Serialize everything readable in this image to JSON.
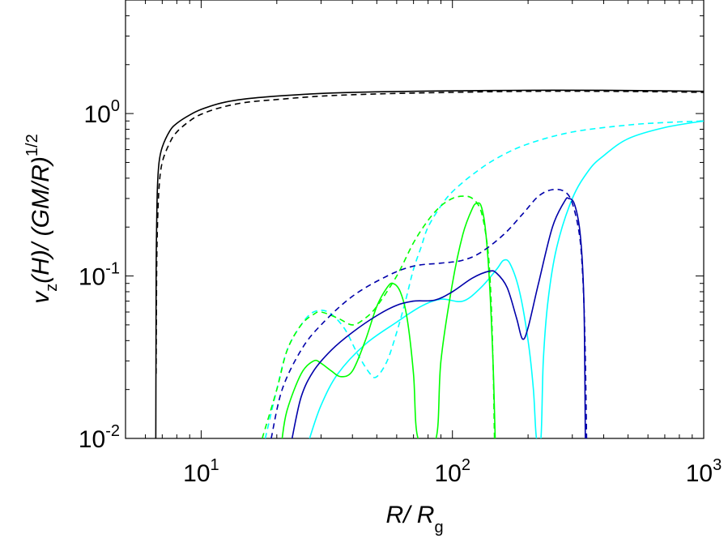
{
  "chart_data": {
    "type": "line",
    "xlabel": {
      "main": "R/ R",
      "sub": "g"
    },
    "ylabel": {
      "v": "v",
      "sub": "z",
      "rest": "(H)/ (GM/R)",
      "sup": "1/2"
    },
    "xscale": "log",
    "yscale": "log",
    "xlim": [
      5,
      1000
    ],
    "ylim": [
      0.01,
      5
    ],
    "grid": false,
    "legend": "none",
    "x_ticks": [
      {
        "value": 10,
        "base": "10",
        "exp": "1"
      },
      {
        "value": 100,
        "base": "10",
        "exp": "2"
      },
      {
        "value": 1000,
        "base": "10",
        "exp": "3"
      }
    ],
    "y_ticks": [
      {
        "value": 0.01,
        "base": "10",
        "exp": "-2"
      },
      {
        "value": 0.1,
        "base": "10",
        "exp": "-1"
      },
      {
        "value": 1,
        "base": "10",
        "exp": "0"
      }
    ],
    "series": [
      {
        "color": "#000000",
        "dash": "solid",
        "points": [
          [
            6.6,
            0.01
          ],
          [
            6.62,
            0.1
          ],
          [
            6.65,
            0.2
          ],
          [
            6.7,
            0.35
          ],
          [
            6.8,
            0.5
          ],
          [
            7.0,
            0.62
          ],
          [
            7.5,
            0.78
          ],
          [
            8,
            0.87
          ],
          [
            9,
            0.98
          ],
          [
            10,
            1.06
          ],
          [
            12,
            1.16
          ],
          [
            15,
            1.23
          ],
          [
            20,
            1.28
          ],
          [
            30,
            1.33
          ],
          [
            50,
            1.36
          ],
          [
            100,
            1.38
          ],
          [
            200,
            1.39
          ],
          [
            400,
            1.39
          ],
          [
            700,
            1.38
          ],
          [
            1000,
            1.37
          ]
        ]
      },
      {
        "color": "#000000",
        "dash": "dashed",
        "points": [
          [
            6.62,
            0.025
          ],
          [
            6.65,
            0.1
          ],
          [
            6.7,
            0.2
          ],
          [
            6.8,
            0.35
          ],
          [
            7.0,
            0.5
          ],
          [
            7.5,
            0.66
          ],
          [
            8,
            0.77
          ],
          [
            9,
            0.9
          ],
          [
            10,
            0.99
          ],
          [
            12,
            1.09
          ],
          [
            15,
            1.17
          ],
          [
            20,
            1.22
          ],
          [
            30,
            1.28
          ],
          [
            50,
            1.32
          ],
          [
            100,
            1.35
          ],
          [
            200,
            1.37
          ],
          [
            400,
            1.37
          ],
          [
            700,
            1.36
          ],
          [
            1000,
            1.35
          ]
        ]
      },
      {
        "color": "#00ffff",
        "dash": "dashed",
        "points": [
          [
            18,
            0.01
          ],
          [
            20,
            0.02
          ],
          [
            22,
            0.035
          ],
          [
            25,
            0.05
          ],
          [
            28,
            0.06
          ],
          [
            32,
            0.06
          ],
          [
            37,
            0.048
          ],
          [
            42,
            0.033
          ],
          [
            47,
            0.025
          ],
          [
            50,
            0.024
          ],
          [
            55,
            0.03
          ],
          [
            60,
            0.045
          ],
          [
            65,
            0.07
          ],
          [
            70,
            0.11
          ],
          [
            75,
            0.15
          ],
          [
            80,
            0.2
          ],
          [
            90,
            0.27
          ],
          [
            100,
            0.33
          ],
          [
            120,
            0.42
          ],
          [
            150,
            0.53
          ],
          [
            200,
            0.65
          ],
          [
            300,
            0.77
          ],
          [
            500,
            0.85
          ],
          [
            700,
            0.88
          ],
          [
            1000,
            0.9
          ]
        ]
      },
      {
        "color": "#00ffff",
        "dash": "solid",
        "points": [
          [
            27,
            0.01
          ],
          [
            30,
            0.016
          ],
          [
            35,
            0.025
          ],
          [
            45,
            0.038
          ],
          [
            60,
            0.052
          ],
          [
            75,
            0.065
          ],
          [
            90,
            0.072
          ],
          [
            110,
            0.07
          ],
          [
            130,
            0.085
          ],
          [
            150,
            0.11
          ],
          [
            160,
            0.125
          ],
          [
            170,
            0.118
          ],
          [
            185,
            0.08
          ],
          [
            200,
            0.04
          ],
          [
            210,
            0.02
          ],
          [
            216,
            0.01
          ],
          [
            225,
            0.01
          ],
          [
            230,
            0.03
          ],
          [
            240,
            0.07
          ],
          [
            260,
            0.15
          ],
          [
            300,
            0.3
          ],
          [
            350,
            0.45
          ],
          [
            400,
            0.55
          ],
          [
            500,
            0.7
          ],
          [
            700,
            0.82
          ],
          [
            1000,
            0.9
          ]
        ]
      },
      {
        "color": "#00ff00",
        "dash": "dashed",
        "points": [
          [
            17.5,
            0.01
          ],
          [
            20,
            0.02
          ],
          [
            22,
            0.035
          ],
          [
            25,
            0.05
          ],
          [
            28,
            0.058
          ],
          [
            30,
            0.06
          ],
          [
            35,
            0.055
          ],
          [
            40,
            0.05
          ],
          [
            45,
            0.055
          ],
          [
            50,
            0.065
          ],
          [
            60,
            0.1
          ],
          [
            70,
            0.16
          ],
          [
            80,
            0.22
          ],
          [
            90,
            0.27
          ],
          [
            100,
            0.3
          ],
          [
            110,
            0.31
          ],
          [
            120,
            0.3
          ],
          [
            130,
            0.25
          ],
          [
            138,
            0.15
          ],
          [
            142,
            0.08
          ],
          [
            145,
            0.03
          ],
          [
            147,
            0.01
          ]
        ]
      },
      {
        "color": "#00ff00",
        "dash": "solid",
        "points": [
          [
            21,
            0.01
          ],
          [
            22,
            0.015
          ],
          [
            25,
            0.025
          ],
          [
            28,
            0.03
          ],
          [
            30,
            0.029
          ],
          [
            33,
            0.026
          ],
          [
            36,
            0.024
          ],
          [
            40,
            0.026
          ],
          [
            45,
            0.04
          ],
          [
            50,
            0.065
          ],
          [
            55,
            0.085
          ],
          [
            58,
            0.09
          ],
          [
            62,
            0.08
          ],
          [
            66,
            0.055
          ],
          [
            70,
            0.025
          ],
          [
            73,
            0.01
          ],
          [
            86,
            0.01
          ],
          [
            90,
            0.03
          ],
          [
            100,
            0.09
          ],
          [
            110,
            0.18
          ],
          [
            120,
            0.26
          ],
          [
            125,
            0.28
          ],
          [
            130,
            0.27
          ],
          [
            135,
            0.2
          ],
          [
            140,
            0.1
          ],
          [
            145,
            0.03
          ],
          [
            148,
            0.01
          ]
        ]
      },
      {
        "color": "#0000aa",
        "dash": "dashed",
        "points": [
          [
            19,
            0.01
          ],
          [
            21,
            0.02
          ],
          [
            25,
            0.035
          ],
          [
            30,
            0.05
          ],
          [
            40,
            0.075
          ],
          [
            55,
            0.1
          ],
          [
            70,
            0.115
          ],
          [
            90,
            0.12
          ],
          [
            110,
            0.125
          ],
          [
            130,
            0.14
          ],
          [
            160,
            0.18
          ],
          [
            190,
            0.24
          ],
          [
            220,
            0.31
          ],
          [
            250,
            0.34
          ],
          [
            280,
            0.33
          ],
          [
            300,
            0.28
          ],
          [
            320,
            0.18
          ],
          [
            330,
            0.1
          ],
          [
            337,
            0.04
          ],
          [
            342,
            0.01
          ]
        ]
      },
      {
        "color": "#0000aa",
        "dash": "solid",
        "points": [
          [
            23,
            0.01
          ],
          [
            25,
            0.018
          ],
          [
            28,
            0.026
          ],
          [
            33,
            0.035
          ],
          [
            40,
            0.045
          ],
          [
            50,
            0.057
          ],
          [
            60,
            0.066
          ],
          [
            70,
            0.07
          ],
          [
            85,
            0.071
          ],
          [
            100,
            0.08
          ],
          [
            120,
            0.097
          ],
          [
            140,
            0.107
          ],
          [
            150,
            0.104
          ],
          [
            165,
            0.085
          ],
          [
            180,
            0.055
          ],
          [
            190,
            0.041
          ],
          [
            200,
            0.048
          ],
          [
            220,
            0.09
          ],
          [
            250,
            0.2
          ],
          [
            280,
            0.29
          ],
          [
            290,
            0.3
          ],
          [
            305,
            0.28
          ],
          [
            320,
            0.2
          ],
          [
            330,
            0.11
          ],
          [
            335,
            0.05
          ],
          [
            338,
            0.01
          ]
        ]
      }
    ]
  }
}
